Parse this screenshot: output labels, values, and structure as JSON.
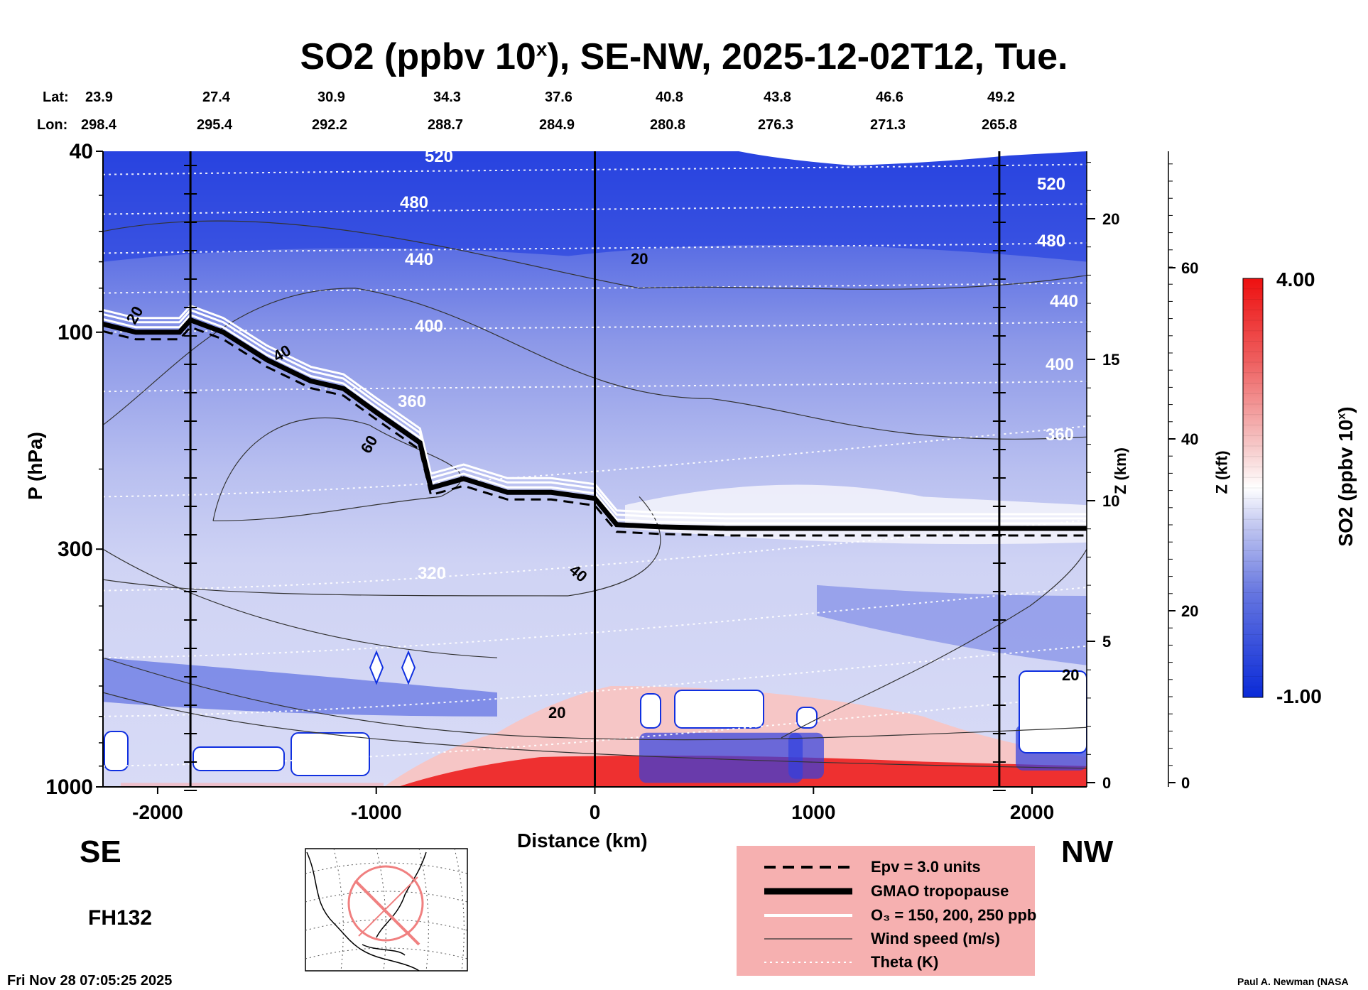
{
  "title": {
    "main": "SO2 (ppbv 10",
    "sup": "x",
    "rest": "), SE-NW, 2025-12-02T12, Tue."
  },
  "header": {
    "lat_label": "Lat:",
    "lon_label": "Lon:",
    "lat": [
      "23.9",
      "27.4",
      "30.9",
      "34.3",
      "37.6",
      "40.8",
      "43.8",
      "46.6",
      "49.2"
    ],
    "lon": [
      "298.4",
      "295.4",
      "292.2",
      "288.7",
      "284.9",
      "280.8",
      "276.3",
      "271.3",
      "265.8"
    ]
  },
  "chart_data": {
    "type": "heatmap",
    "variable": "SO2 (ppbv 10^x)",
    "xlabel": "Distance (km)",
    "ylabel": "P (hPa)",
    "y2label": "Z (km)",
    "y3label": "Z (kft)",
    "xlim": [
      -2250,
      2250
    ],
    "ylim": [
      1000,
      40
    ],
    "yscale": "log",
    "x_ticks": [
      "-2000",
      "-1000",
      "0",
      "1000",
      "2000"
    ],
    "y_ticks": [
      "40",
      "100",
      "300",
      "1000"
    ],
    "z_km_ticks": [
      "0",
      "5",
      "10",
      "15",
      "20"
    ],
    "z_kft_ticks": [
      "0",
      "20",
      "40",
      "60"
    ],
    "colorbar": {
      "label": "SO2 (ppbv 10",
      "label_sup": "x",
      "label_end": ")",
      "max": "4.00",
      "min": "-1.00",
      "low_color": "#1030e0",
      "high_color": "#f01010"
    },
    "theta_labels": [
      "520",
      "480",
      "440",
      "400",
      "360",
      "320",
      "520",
      "480",
      "440",
      "400",
      "360"
    ],
    "wind_labels": [
      "20",
      "40",
      "60",
      "20",
      "40",
      "20",
      "20"
    ],
    "legend": [
      {
        "label": "Epv = 3.0 units",
        "style": "dashed"
      },
      {
        "label": "GMAO tropopause",
        "style": "thick"
      },
      {
        "label": "O₃ = 150, 200, 250 ppb",
        "style": "white"
      },
      {
        "label": "Wind speed (m/s)",
        "style": "thin"
      },
      {
        "label": "Theta (K)",
        "style": "dotted"
      }
    ],
    "tropopause": {
      "x": [
        -2250,
        -2100,
        -1900,
        -1850,
        -1700,
        -1500,
        -1300,
        -1150,
        -1000,
        -800,
        -750,
        -600,
        -400,
        -200,
        0,
        100,
        300,
        600,
        900,
        1300,
        1800,
        2250
      ],
      "p": [
        96,
        100,
        100,
        94,
        100,
        115,
        128,
        133,
        150,
        175,
        220,
        210,
        225,
        225,
        232,
        265,
        268,
        270,
        270,
        270,
        270,
        270
      ]
    }
  },
  "labels": {
    "se": "SE",
    "nw": "NW",
    "fh": "FH132"
  },
  "footer": {
    "timestamp": "Fri Nov 28 07:05:25 2025",
    "credit": "Paul A. Newman (NASA"
  }
}
